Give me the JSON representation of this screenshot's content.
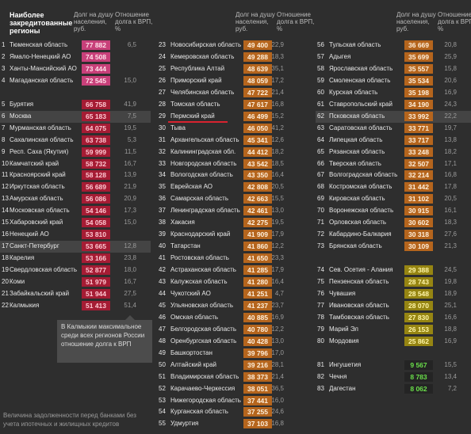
{
  "columns": [
    {
      "title": "Наиболее закредитованные регионы",
      "debt_header": "Долг на душу населения, руб.",
      "ratio_header": "Отношение долга к ВРП, %",
      "groups": [
        {
          "color": "#c8407a",
          "text_color": "#ffe0ea",
          "rows": [
            {
              "rank": "1",
              "name": "Тюменская область",
              "debt": "77 882",
              "ratio": "6,5"
            },
            {
              "rank": "2",
              "name": "Ямало-Ненецкий АО",
              "debt": "74 508"
            },
            {
              "rank": "3",
              "name": "Ханты-Мансийский АО",
              "debt": "73 444"
            },
            {
              "rank": "4",
              "name": "Магаданская область",
              "debt": "72 545",
              "ratio": "15,0"
            }
          ]
        },
        {
          "color": "#a51c34",
          "text_color": "#ffc8d2",
          "rows": [
            {
              "rank": "5",
              "name": "Бурятия",
              "debt": "66 758",
              "ratio": "41,9"
            },
            {
              "rank": "6",
              "name": "Москва",
              "debt": "65 183",
              "ratio": "7,5",
              "highlight": true
            },
            {
              "rank": "7",
              "name": "Мурманская область",
              "debt": "64 075",
              "ratio": "19,5"
            },
            {
              "rank": "8",
              "name": "Сахалинская область",
              "debt": "63 738",
              "ratio": "5,3"
            },
            {
              "rank": "9",
              "name": "Респ. Саха (Якутия)",
              "debt": "59 999",
              "ratio": "11,5"
            },
            {
              "rank": "10",
              "name": "Камчатский край",
              "debt": "58 732",
              "ratio": "16,7"
            },
            {
              "rank": "11",
              "name": "Красноярский край",
              "debt": "58 128",
              "ratio": "13,9"
            },
            {
              "rank": "12",
              "name": "Иркутская область",
              "debt": "56 689",
              "ratio": "21,9"
            },
            {
              "rank": "13",
              "name": "Амурская область",
              "debt": "56 086",
              "ratio": "20,9"
            },
            {
              "rank": "14",
              "name": "Московская область",
              "debt": "54 146",
              "ratio": "17,3"
            },
            {
              "rank": "15",
              "name": "Хабаровский край",
              "debt": "54 058",
              "ratio": "15,0"
            },
            {
              "rank": "16",
              "name": "Ненецкий АО",
              "debt": "53 810"
            },
            {
              "rank": "17",
              "name": "Санкт-Петербург",
              "debt": "53 665",
              "ratio": "12,8",
              "highlight": true
            },
            {
              "rank": "18",
              "name": "Карелия",
              "debt": "53 166",
              "ratio": "23,8"
            },
            {
              "rank": "19",
              "name": "Свердловская область",
              "debt": "52 877",
              "ratio": "18,0"
            },
            {
              "rank": "20",
              "name": "Коми",
              "debt": "51 979",
              "ratio": "16,7"
            },
            {
              "rank": "21",
              "name": "Забайкальский край",
              "debt": "51 944",
              "ratio": "27,5"
            },
            {
              "rank": "22",
              "name": "Калмыкия",
              "debt": "51 413",
              "ratio": "51,4"
            }
          ]
        }
      ]
    },
    {
      "debt_header": "Долг на душу населения, руб.",
      "ratio_header": "Отношение долга к ВРП, %",
      "groups": [
        {
          "color": "#b5651d",
          "text_color": "#fff0dc",
          "rows": [
            {
              "rank": "23",
              "name": "Новосибирская область",
              "debt": "49 400",
              "ratio": "22,9"
            },
            {
              "rank": "24",
              "name": "Кемеровская область",
              "debt": "49 288",
              "ratio": "18,3"
            },
            {
              "rank": "25",
              "name": "Республика Алтай",
              "debt": "48 639",
              "ratio": "35,1"
            },
            {
              "rank": "26",
              "name": "Приморский край",
              "debt": "48 059",
              "ratio": "17,2"
            },
            {
              "rank": "27",
              "name": "Челябинская область",
              "debt": "47 722",
              "ratio": "21,4"
            },
            {
              "rank": "28",
              "name": "Томская область",
              "debt": "47 617",
              "ratio": "16,8"
            },
            {
              "rank": "29",
              "name": "Пермский край",
              "debt": "46 499",
              "ratio": "15,2",
              "underline": true
            },
            {
              "rank": "30",
              "name": "Тыва",
              "debt": "46 050",
              "ratio": "41,2"
            },
            {
              "rank": "31",
              "name": "Архангельская область",
              "debt": "45 341",
              "ratio": "12,6"
            },
            {
              "rank": "32",
              "name": "Калининградская обл.",
              "debt": "44 412",
              "ratio": "18,2"
            },
            {
              "rank": "33",
              "name": "Новгородская область",
              "debt": "43 542",
              "ratio": "18,5"
            },
            {
              "rank": "34",
              "name": "Вологодская область",
              "debt": "43 350",
              "ratio": "16,4"
            },
            {
              "rank": "35",
              "name": "Еврейская АО",
              "debt": "42 808",
              "ratio": "20,5"
            },
            {
              "rank": "36",
              "name": "Самарская область",
              "debt": "42 663",
              "ratio": "15,5"
            },
            {
              "rank": "37",
              "name": "Ленинградская область",
              "debt": "42 461",
              "ratio": "13,0"
            },
            {
              "rank": "38",
              "name": "Хакасия",
              "debt": "42 275",
              "ratio": "19,5"
            },
            {
              "rank": "39",
              "name": "Краснодарский край",
              "debt": "41 909",
              "ratio": "17,9"
            },
            {
              "rank": "40",
              "name": "Татарстан",
              "debt": "41 860",
              "ratio": "12,2"
            },
            {
              "rank": "41",
              "name": "Ростовская область",
              "debt": "41 650",
              "ratio": "23,3"
            },
            {
              "rank": "42",
              "name": "Астраханская область",
              "debt": "41 285",
              "ratio": "17,9"
            },
            {
              "rank": "43",
              "name": "Калужская область",
              "debt": "41 280",
              "ratio": "16,4"
            },
            {
              "rank": "44",
              "name": "Чукотский АО",
              "debt": "41 251",
              "ratio": "4,7"
            },
            {
              "rank": "45",
              "name": "Ульяновская область",
              "debt": "41 237",
              "ratio": "23,7"
            },
            {
              "rank": "46",
              "name": "Омская область",
              "debt": "40 885",
              "ratio": "16,9"
            },
            {
              "rank": "47",
              "name": "Белгородская область",
              "debt": "40 780",
              "ratio": "12,2"
            },
            {
              "rank": "48",
              "name": "Оренбургская область",
              "debt": "40 428",
              "ratio": "13,0"
            },
            {
              "rank": "49",
              "name": "Башкортостан",
              "debt": "39 796",
              "ratio": "17,0"
            },
            {
              "rank": "50",
              "name": "Алтайский край",
              "debt": "39 216",
              "ratio": "28,1"
            },
            {
              "rank": "51",
              "name": "Владимирская область",
              "debt": "38 373",
              "ratio": "21,4"
            },
            {
              "rank": "52",
              "name": "Карачаево-Черкессия",
              "debt": "38 051",
              "ratio": "36,5"
            },
            {
              "rank": "53",
              "name": "Нижегородская область",
              "debt": "37 441",
              "ratio": "16,0"
            },
            {
              "rank": "54",
              "name": "Курганская область",
              "debt": "37 255",
              "ratio": "24,6"
            },
            {
              "rank": "55",
              "name": "Удмуртия",
              "debt": "37 103",
              "ratio": "16,8"
            }
          ]
        }
      ]
    },
    {
      "debt_header": "Долг на душу населения, руб.",
      "ratio_header": "Отношение долга к ВРП, %",
      "groups": [
        {
          "color": "#b5651d",
          "text_color": "#fff0dc",
          "rows": [
            {
              "rank": "56",
              "name": "Тульская область",
              "debt": "36 669",
              "ratio": "20,8"
            },
            {
              "rank": "57",
              "name": "Адыгея",
              "debt": "35 699",
              "ratio": "25,9"
            },
            {
              "rank": "58",
              "name": "Ярославская область",
              "debt": "35 557",
              "ratio": "15,8"
            },
            {
              "rank": "59",
              "name": "Смоленская область",
              "debt": "35 534",
              "ratio": "20,6"
            },
            {
              "rank": "60",
              "name": "Курская область",
              "debt": "35 198",
              "ratio": "16,9"
            },
            {
              "rank": "61",
              "name": "Ставропольский край",
              "debt": "34 190",
              "ratio": "24,3"
            },
            {
              "rank": "62",
              "name": "Псковская область",
              "debt": "33 992",
              "ratio": "22,2",
              "highlight": true
            },
            {
              "rank": "63",
              "name": "Саратовская область",
              "debt": "33 771",
              "ratio": "19,7"
            },
            {
              "rank": "64",
              "name": "Липецкая область",
              "debt": "33 717",
              "ratio": "13,8"
            },
            {
              "rank": "65",
              "name": "Рязанская область",
              "debt": "33 248",
              "ratio": "18,2"
            },
            {
              "rank": "66",
              "name": "Тверская область",
              "debt": "32 507",
              "ratio": "17,1"
            },
            {
              "rank": "67",
              "name": "Волгоградская область",
              "debt": "32 214",
              "ratio": "16,8"
            },
            {
              "rank": "68",
              "name": "Костромская область",
              "debt": "31 442",
              "ratio": "17,8"
            },
            {
              "rank": "69",
              "name": "Кировская область",
              "debt": "31 102",
              "ratio": "20,5"
            },
            {
              "rank": "70",
              "name": "Воронежская область",
              "debt": "30 915",
              "ratio": "16,1"
            },
            {
              "rank": "71",
              "name": "Орловская область",
              "debt": "30 602",
              "ratio": "18,3"
            },
            {
              "rank": "72",
              "name": "Кабардино-Балкария",
              "debt": "30 318",
              "ratio": "27,6"
            },
            {
              "rank": "73",
              "name": "Брянская область",
              "debt": "30 109",
              "ratio": "21,3"
            }
          ]
        },
        {
          "color": "#968512",
          "text_color": "#fff6a8",
          "rows": [
            {
              "rank": "74",
              "name": "Сев. Осетия - Алания",
              "debt": "29 388",
              "ratio": "24,5"
            },
            {
              "rank": "75",
              "name": "Пензенская область",
              "debt": "28 743",
              "ratio": "19,8"
            },
            {
              "rank": "76",
              "name": "Чувашия",
              "debt": "28 548",
              "ratio": "18,9"
            },
            {
              "rank": "77",
              "name": "Ивановская область",
              "debt": "28 070",
              "ratio": "25,1"
            },
            {
              "rank": "78",
              "name": "Тамбовская область",
              "debt": "27 830",
              "ratio": "16,6"
            },
            {
              "rank": "79",
              "name": "Марий Эл",
              "debt": "26 153",
              "ratio": "18,8"
            },
            {
              "rank": "80",
              "name": "Мордовия",
              "debt": "25 862",
              "ratio": "16,9"
            }
          ]
        },
        {
          "color": "#242424",
          "text_color": "#6ae04a",
          "rows": [
            {
              "rank": "81",
              "name": "Ингушетия",
              "debt": "9 567",
              "ratio": "15,5"
            },
            {
              "rank": "82",
              "name": "Чечня",
              "debt": "8 783",
              "ratio": "13,4"
            },
            {
              "rank": "83",
              "name": "Дагестан",
              "debt": "8 062",
              "ratio": "7,2"
            }
          ]
        }
      ]
    }
  ],
  "note": "В Калмыкии максимальное среди всех регионов России отношение долга к ВРП",
  "footnote": "Величина задолженности перед банками без учета ипотечных и жилищных кредитов"
}
